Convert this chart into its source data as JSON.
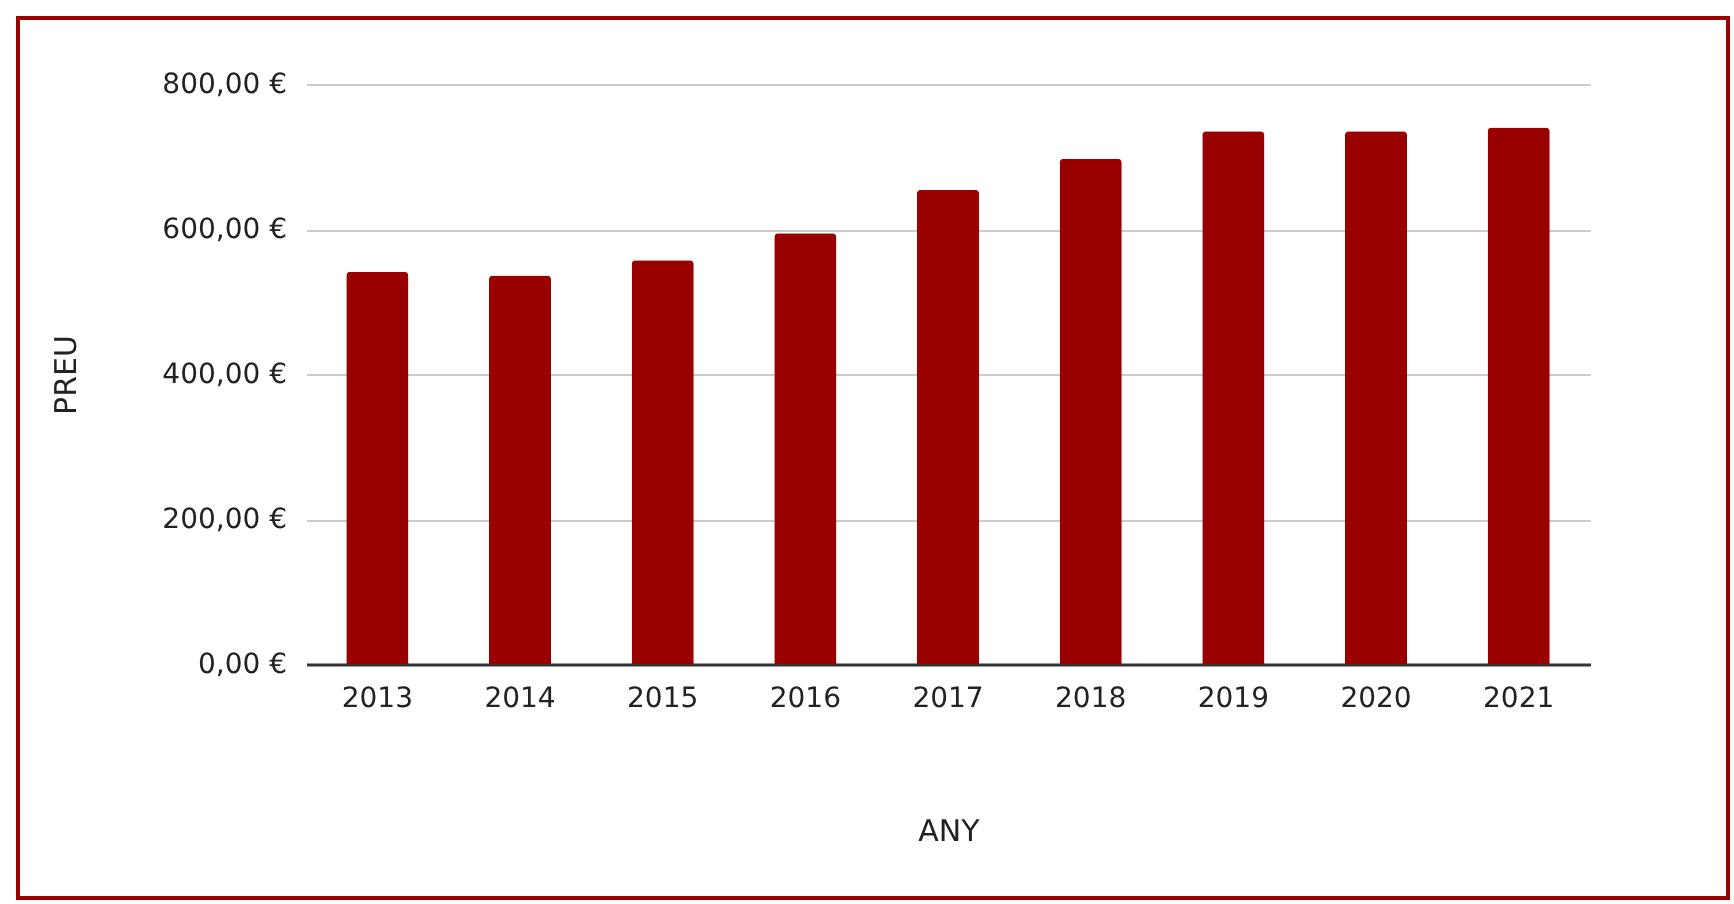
{
  "chart_data": {
    "type": "bar",
    "xlabel": "ANY",
    "ylabel": "PREU",
    "categories": [
      "2013",
      "2014",
      "2015",
      "2016",
      "2017",
      "2018",
      "2019",
      "2020",
      "2021"
    ],
    "values": [
      541,
      536,
      557,
      594,
      654,
      697,
      735,
      735,
      740
    ],
    "color": "#990000",
    "ylim": [
      0,
      800
    ],
    "yticks": [
      {
        "value": 0,
        "label": "0,00 €"
      },
      {
        "value": 200,
        "label": "200,00 €"
      },
      {
        "value": 400,
        "label": "400,00 €"
      },
      {
        "value": 600,
        "label": "600,00 €"
      },
      {
        "value": 800,
        "label": "800,00 €"
      }
    ],
    "grid": "y"
  }
}
